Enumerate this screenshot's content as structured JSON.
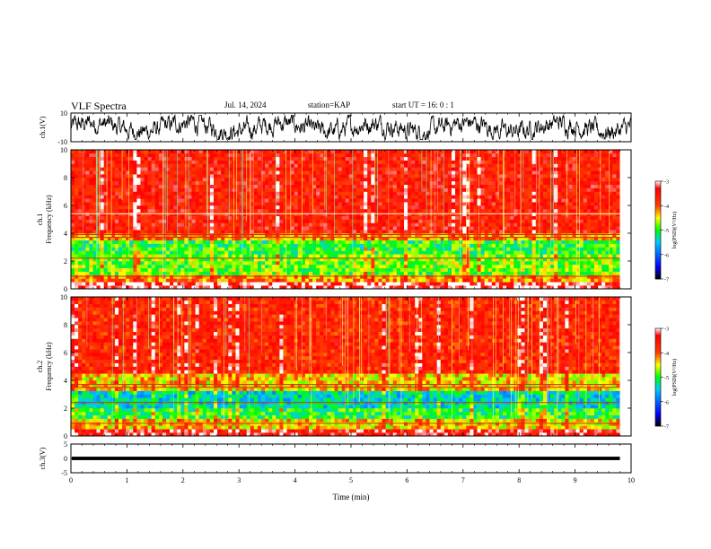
{
  "header": {
    "title": "VLF Spectra",
    "date": "Jul. 14, 2024",
    "station": "station=KAP",
    "start": "start UT =  16: 0  : 1"
  },
  "chart_data": [
    {
      "type": "line",
      "panel": "waveform-ch1",
      "ylabel": "ch.1(V)",
      "ylim": [
        -10,
        10
      ],
      "yticks": [
        "10",
        "-10"
      ],
      "xlim": [
        0,
        10
      ],
      "series": [
        {
          "amplitude_range": [
            -8,
            8
          ],
          "color": "#000000"
        }
      ]
    },
    {
      "type": "heatmap",
      "panel": "spectrogram-ch1",
      "ylabel_line1": "ch.1",
      "ylabel_line2": "Frequency (kHz)",
      "ylim": [
        0,
        10
      ],
      "yticks": [
        "0",
        "2",
        "4",
        "6",
        "8",
        "10"
      ],
      "xlim": [
        0,
        9.8
      ],
      "colorbar": {
        "label": "log(PSD)(V²/Hz)",
        "range": [
          -7,
          -3
        ],
        "ticks": [
          "-3",
          "-4",
          "-5",
          "-6",
          "-7"
        ],
        "colors": [
          "#000000",
          "#0000ff",
          "#00ccff",
          "#00ff00",
          "#ffff00",
          "#ff0000",
          "#ffffff"
        ]
      },
      "bands_khz": [
        {
          "from": 0.0,
          "to": 0.5,
          "level": -3.2
        },
        {
          "from": 0.5,
          "to": 1.0,
          "level": -4.2
        },
        {
          "from": 1.0,
          "to": 2.6,
          "level": -4.8
        },
        {
          "from": 2.6,
          "to": 3.6,
          "level": -5.0
        },
        {
          "from": 3.6,
          "to": 4.0,
          "level": -4.2
        },
        {
          "from": 4.0,
          "to": 10.0,
          "level": -3.6
        }
      ],
      "lines_khz": [
        0.9,
        2.2,
        3.7,
        3.9,
        5.4
      ]
    },
    {
      "type": "heatmap",
      "panel": "spectrogram-ch2",
      "ylabel_line1": "ch.2",
      "ylabel_line2": "Frequency (kHz)",
      "ylim": [
        0,
        10
      ],
      "yticks": [
        "0",
        "2",
        "4",
        "6",
        "8",
        "10"
      ],
      "xlim": [
        0,
        9.8
      ],
      "colorbar": {
        "label": "log(PSD)(V²/Hz)",
        "range": [
          -7,
          -3
        ],
        "ticks": [
          "-3",
          "-4",
          "-5",
          "-6",
          "-7"
        ],
        "colors": [
          "#000000",
          "#0000ff",
          "#00ccff",
          "#00ff00",
          "#ffff00",
          "#ff0000",
          "#ffffff"
        ]
      },
      "bands_khz": [
        {
          "from": 0.0,
          "to": 0.5,
          "level": -3.4
        },
        {
          "from": 0.5,
          "to": 1.2,
          "level": -4.4
        },
        {
          "from": 1.2,
          "to": 2.0,
          "level": -5.0
        },
        {
          "from": 2.0,
          "to": 3.2,
          "level": -5.4
        },
        {
          "from": 3.2,
          "to": 4.5,
          "level": -4.4
        },
        {
          "from": 4.5,
          "to": 10.0,
          "level": -3.7
        }
      ],
      "lines_khz": [
        0.9,
        2.4,
        3.5,
        3.7
      ]
    },
    {
      "type": "line",
      "panel": "waveform-ch3",
      "ylabel": "ch.3(V)",
      "ylim": [
        -5,
        5
      ],
      "yticks": [
        "5",
        "0",
        "-5"
      ],
      "xlim": [
        0,
        10
      ],
      "xlabel": "Time (min)",
      "xticks": [
        "0",
        "1",
        "2",
        "3",
        "4",
        "5",
        "6",
        "7",
        "8",
        "9",
        "10"
      ],
      "series": [
        {
          "band": [
            -0.6,
            0.6
          ],
          "color": "#000000"
        }
      ]
    }
  ]
}
